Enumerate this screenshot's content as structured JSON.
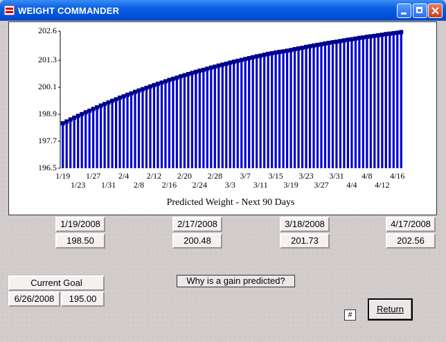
{
  "window": {
    "title": "WEIGHT COMMANDER"
  },
  "chart_data": {
    "type": "bar",
    "title": "Predicted Weight - Next 90 Days",
    "categories": [
      "1/19",
      null,
      null,
      null,
      "1/23",
      null,
      null,
      null,
      "1/27",
      null,
      null,
      null,
      "1/31",
      null,
      null,
      null,
      "2/4",
      null,
      null,
      null,
      "2/8",
      null,
      null,
      null,
      "2/12",
      null,
      null,
      null,
      "2/16",
      null,
      null,
      null,
      "2/20",
      null,
      null,
      null,
      "2/24",
      null,
      null,
      null,
      "2/28",
      null,
      null,
      null,
      "3/3",
      null,
      null,
      null,
      "3/7",
      null,
      null,
      null,
      "3/11",
      null,
      null,
      null,
      "3/15",
      null,
      null,
      null,
      "3/19",
      null,
      null,
      null,
      "3/23",
      null,
      null,
      null,
      "3/27",
      null,
      null,
      null,
      "3/31",
      null,
      null,
      null,
      "4/4",
      null,
      null,
      null,
      "4/8",
      null,
      null,
      null,
      "4/12",
      null,
      null,
      null,
      "4/16",
      null
    ],
    "values": [
      198.5,
      198.58,
      198.67,
      198.75,
      198.83,
      198.91,
      198.99,
      199.06,
      199.14,
      199.21,
      199.29,
      199.36,
      199.43,
      199.5,
      199.57,
      199.64,
      199.7,
      199.77,
      199.83,
      199.9,
      199.96,
      200.02,
      200.08,
      200.14,
      200.2,
      200.26,
      200.31,
      200.37,
      200.43,
      200.48,
      200.53,
      200.59,
      200.64,
      200.69,
      200.74,
      200.79,
      200.84,
      200.88,
      200.93,
      200.98,
      201.02,
      201.07,
      201.11,
      201.15,
      201.2,
      201.24,
      201.28,
      201.32,
      201.36,
      201.4,
      201.44,
      201.48,
      201.51,
      201.55,
      201.59,
      201.62,
      201.65,
      201.68,
      201.7,
      201.73,
      201.76,
      201.8,
      201.83,
      201.86,
      201.9,
      201.93,
      201.96,
      201.99,
      202.02,
      202.05,
      202.08,
      202.11,
      202.13,
      202.16,
      202.19,
      202.22,
      202.24,
      202.27,
      202.3,
      202.32,
      202.35,
      202.37,
      202.39,
      202.42,
      202.44,
      202.47,
      202.49,
      202.51,
      202.53,
      202.56
    ],
    "color": "#0000d0",
    "cap_color": "#00008b",
    "ylim": [
      196.5,
      202.6
    ],
    "yticks": [
      196.5,
      197.7,
      198.9,
      200.1,
      201.3,
      202.6
    ],
    "grid": false
  },
  "milestones": [
    {
      "date": "1/19/2008",
      "weight": "198.50"
    },
    {
      "date": "2/17/2008",
      "weight": "200.48"
    },
    {
      "date": "3/18/2008",
      "weight": "201.73"
    },
    {
      "date": "4/17/2008",
      "weight": "202.56"
    }
  ],
  "goal": {
    "label": "Current Goal",
    "date": "6/26/2008",
    "weight": "195.00"
  },
  "buttons": {
    "why": "Why is a gain predicted?",
    "hash": "#",
    "return": "Return"
  }
}
